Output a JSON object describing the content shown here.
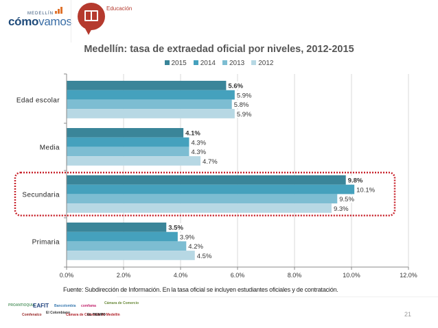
{
  "header": {
    "logo_small": "MEDELLÍN",
    "logo_main_bold": "cómo",
    "logo_main_light": "vamos",
    "section_label": "Educación",
    "section_icon": "open-book-icon"
  },
  "chart_data": {
    "type": "bar",
    "orientation": "horizontal",
    "title": "Medellín: tasa de extraedad oficial por niveles, 2012-2015",
    "categories": [
      "Edad escolar",
      "Media",
      "Secundaria",
      "Primaria"
    ],
    "series": [
      {
        "name": "2015",
        "color": "#3a8599",
        "values": [
          5.6,
          4.1,
          9.8,
          3.5
        ],
        "labels": [
          "5.6%",
          "4.1%",
          "9.8%",
          "3.5%"
        ],
        "bold": true
      },
      {
        "name": "2014",
        "color": "#45a1bd",
        "values": [
          5.9,
          4.3,
          10.1,
          3.9
        ],
        "labels": [
          "5.9%",
          "4.3%",
          "10.1%",
          "3.9%"
        ],
        "bold": false
      },
      {
        "name": "2013",
        "color": "#7dbdd2",
        "values": [
          5.8,
          4.3,
          9.5,
          4.2
        ],
        "labels": [
          "5.8%",
          "4.3%",
          "9.5%",
          "4.2%"
        ],
        "bold": false
      },
      {
        "name": "2012",
        "color": "#b7d8e4",
        "values": [
          5.9,
          4.7,
          9.3,
          4.5
        ],
        "labels": [
          "5.9%",
          "4.7%",
          "9.3%",
          "4.5%"
        ],
        "bold": false
      }
    ],
    "xlabel": "",
    "ylabel": "",
    "xlim": [
      0,
      12
    ],
    "xticks": [
      0,
      2,
      4,
      6,
      8,
      10,
      12
    ],
    "xtick_labels": [
      "0.0%",
      "2.0%",
      "4.0%",
      "6.0%",
      "8.0%",
      "10.0%",
      "12.0%"
    ],
    "grid": true,
    "legend": [
      "2015",
      "2014",
      "2013",
      "2012"
    ],
    "legend_position": "top-center",
    "highlighted_category": "Secundaria",
    "highlight_color": "#c8232c"
  },
  "footer": {
    "source": "Fuente: Subdirección de Información. En la tasa oficial se incluyen estudiantes oficiales y de contratación.",
    "page_number": "21",
    "sponsors": [
      "PROANTIOQUIA",
      "EAFIT",
      "Bancolombia",
      "comfama",
      "Cámara de Comercio",
      "Comfenalco",
      "El Colombiano",
      "Cámara de Comercio de Medellín",
      "EL TIEMPO"
    ]
  }
}
